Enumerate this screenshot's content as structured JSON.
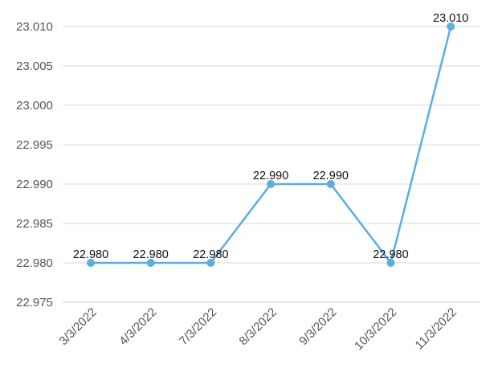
{
  "chart_data": {
    "type": "line",
    "categories": [
      "3/3/2022",
      "4/3/2022",
      "7/3/2022",
      "8/3/2022",
      "9/3/2022",
      "10/3/2022",
      "11/3/2022"
    ],
    "values": [
      22.98,
      22.98,
      22.98,
      22.99,
      22.99,
      22.98,
      23.01
    ],
    "data_labels": [
      "22.980",
      "22.980",
      "22.980",
      "22.990",
      "22.990",
      "22.980",
      "23.010"
    ],
    "y_ticks": [
      "22.975",
      "22.980",
      "22.985",
      "22.990",
      "22.995",
      "23.000",
      "23.005",
      "23.010"
    ],
    "ylim": [
      22.975,
      23.01
    ],
    "grid": true,
    "legend": "none",
    "line_color": "#5aaee0",
    "grid_color": "#d9d9d9",
    "axis_color": "#c8c8c8"
  }
}
